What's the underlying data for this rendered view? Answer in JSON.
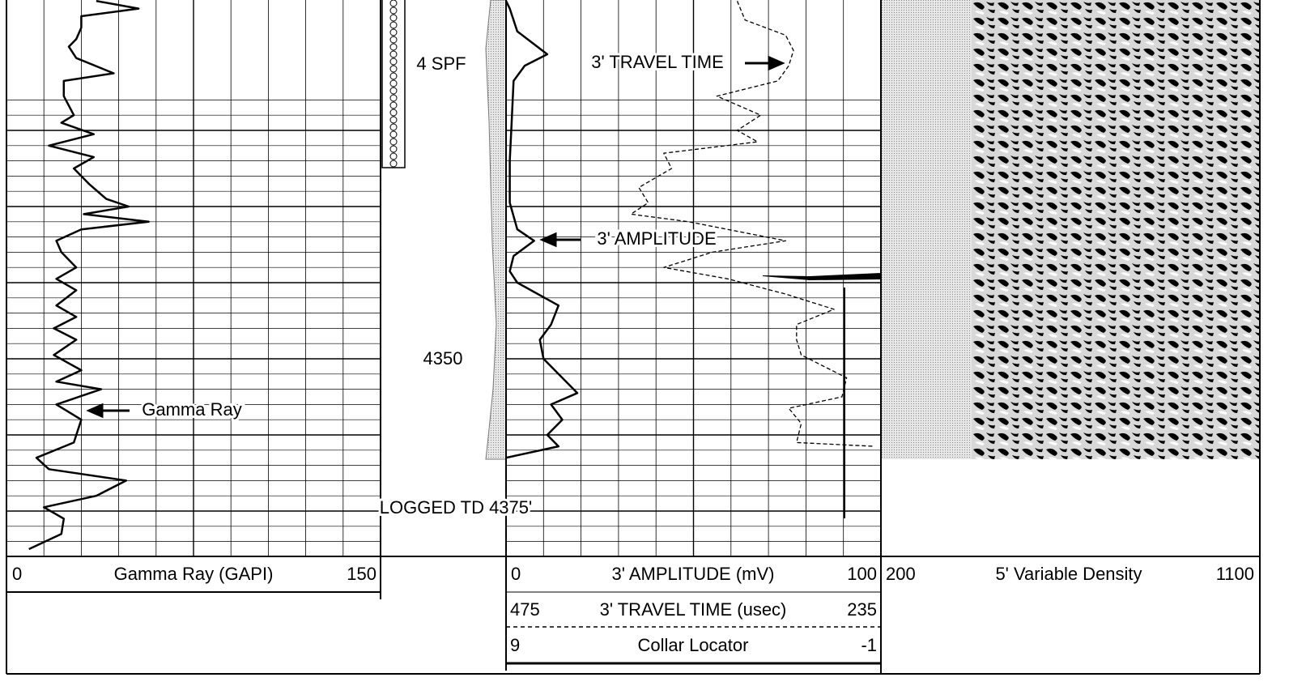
{
  "tracks": {
    "gamma_ray": {
      "name": "Gamma Ray (GAPI)",
      "label": "Gamma Ray",
      "scale_min": 0,
      "scale_max": 150,
      "color": "#000000",
      "depth": [
        4303,
        4304,
        4305,
        4306.5,
        4308,
        4309,
        4310.5,
        4312.5,
        4313.5,
        4315.5,
        4318,
        4319,
        4320.5,
        4322,
        4323.5,
        4325,
        4327,
        4329,
        4330,
        4331,
        4332,
        4333,
        4334.5,
        4336,
        4338,
        4339.5,
        4341,
        4343,
        4344.5,
        4346,
        4347.5,
        4349.5,
        4351.5,
        4353,
        4354,
        4356,
        4358,
        4361,
        4363,
        4364.5,
        4366,
        4368,
        4369.5,
        4371,
        4373,
        4375
      ],
      "values": [
        36,
        53,
        30,
        30,
        28,
        25,
        28,
        43,
        23,
        23,
        27,
        22,
        35,
        17,
        35,
        27,
        33,
        40,
        49,
        31,
        57,
        30,
        20,
        22,
        28,
        20,
        28,
        20,
        28,
        19,
        28,
        19,
        30,
        20,
        38,
        20,
        30,
        27,
        12,
        17,
        48,
        36,
        15,
        23,
        22,
        9
      ]
    },
    "amplitude": {
      "name": "3' AMPLITUDE (mV)",
      "label": "3' AMPLITUDE",
      "scale_min": 0,
      "scale_max": 100,
      "color": "#000000",
      "depth": [
        4303,
        4304,
        4307,
        4310,
        4311.5,
        4313.5,
        4319,
        4324,
        4329.5,
        4333,
        4334.5,
        4336.5,
        4338.5,
        4340,
        4343,
        4345.5,
        4347.5,
        4350,
        4352,
        4354.5,
        4356,
        4358,
        4360,
        4361.5,
        4363
      ],
      "values": [
        0,
        1,
        3,
        11,
        5,
        2,
        1.5,
        1,
        1,
        3,
        7.5,
        2,
        1,
        3,
        14,
        12,
        9,
        10,
        14,
        19,
        12,
        15,
        11,
        14,
        0
      ]
    },
    "travel_time": {
      "name": "3' TRAVEL TIME (usec)",
      "label": "3' TRAVEL TIME",
      "scale_min": 475,
      "scale_max": 235,
      "color": "#000000",
      "depth": [
        4303,
        4304,
        4305.5,
        4307.5,
        4309.5,
        4311.5,
        4313.5,
        4315.5,
        4318,
        4320,
        4321.5,
        4323,
        4325,
        4327.5,
        4329.5,
        4331,
        4332,
        4334.5,
        4336,
        4338,
        4339.5,
        4341.5,
        4343.5,
        4345.5,
        4347.5,
        4349.5,
        4352.5,
        4355,
        4356.5,
        4358.5,
        4361,
        4361.5
      ],
      "values": [
        327,
        325,
        322,
        296,
        291,
        294,
        301,
        340,
        312,
        327,
        314,
        374,
        369,
        390,
        384,
        395,
        358,
        296,
        343,
        374,
        333,
        296,
        265,
        289,
        289,
        286,
        257,
        260,
        294,
        286,
        289,
        239
      ]
    },
    "collar_locator": {
      "name": "Collar Locator",
      "scale_min": 9,
      "scale_max": -1
    },
    "variable_density": {
      "name": "5' Variable Density",
      "scale_min": 200,
      "scale_max": 1100
    }
  },
  "depth_label": 4350,
  "perforation_label": "4 SPF",
  "td_label": "LOGGED TD 4375'"
}
